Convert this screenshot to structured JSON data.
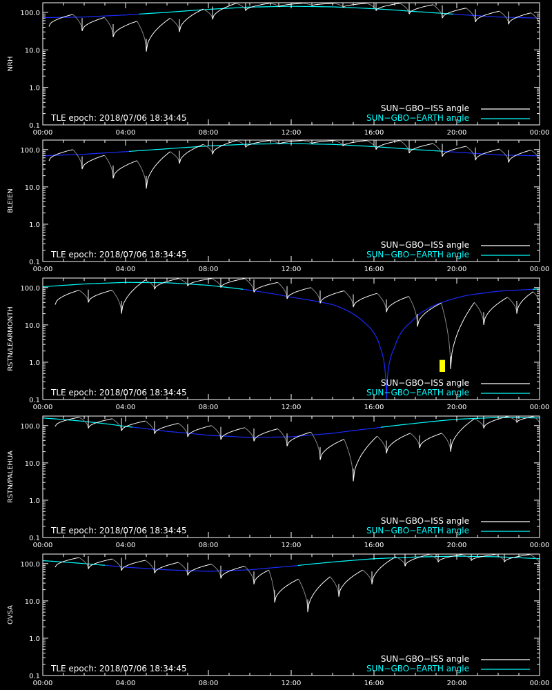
{
  "figure": {
    "background": "#000000",
    "axis_color": "#ffffff",
    "epoch_text": "TLE epoch: 2018/07/06 18:34:45",
    "legend": [
      {
        "label": "SUN−GBO−ISS angle",
        "color": "#ffffff"
      },
      {
        "label": "SUN−GBO−EARTH angle",
        "color": "#00ffff"
      }
    ]
  },
  "chart_data": [
    {
      "type": "line",
      "ylabel": "NRH",
      "yscale": "log",
      "ylim": [
        0.1,
        180
      ],
      "y_ticks": [
        "0.1",
        "1.0",
        "10.0",
        "100.0"
      ],
      "xlim_hours": [
        0,
        24
      ],
      "x_ticks": [
        "00:00",
        "04:00",
        "08:00",
        "12:00",
        "16:00",
        "20:00",
        "00:00"
      ],
      "series": [
        {
          "name": "SUN−GBO−ISS angle",
          "color": "#ffffff",
          "mins": [
            [
              0.3,
              42
            ],
            [
              1.9,
              32
            ],
            [
              3.4,
              22
            ],
            [
              5.0,
              9
            ],
            [
              6.6,
              30
            ],
            [
              8.2,
              65
            ],
            [
              9.8,
              110
            ],
            [
              11.4,
              140
            ],
            [
              13.0,
              150
            ],
            [
              14.5,
              135
            ],
            [
              16.1,
              110
            ],
            [
              17.7,
              90
            ],
            [
              19.3,
              70
            ],
            [
              20.9,
              55
            ],
            [
              22.5,
              48
            ],
            [
              24.0,
              45
            ]
          ]
        },
        {
          "name": "SUN−GBO−EARTH angle",
          "color": "#00ffff",
          "points": [
            [
              0,
              72
            ],
            [
              2,
              75
            ],
            [
              4,
              85
            ],
            [
              6,
              100
            ],
            [
              8,
              120
            ],
            [
              10,
              138
            ],
            [
              12,
              145
            ],
            [
              14,
              140
            ],
            [
              16,
              125
            ],
            [
              18,
              105
            ],
            [
              20,
              88
            ],
            [
              22,
              75
            ],
            [
              24,
              70
            ]
          ]
        }
      ]
    },
    {
      "type": "line",
      "ylabel": "BLEIEN",
      "yscale": "log",
      "ylim": [
        0.1,
        180
      ],
      "y_ticks": [
        "0.1",
        "1.0",
        "10.0",
        "100.0"
      ],
      "xlim_hours": [
        0,
        24
      ],
      "x_ticks": [
        "00:00",
        "04:00",
        "08:00",
        "12:00",
        "16:00",
        "20:00",
        "00:00"
      ],
      "series": [
        {
          "name": "SUN−GBO−ISS angle",
          "color": "#ffffff",
          "mins": [
            [
              0.3,
              50
            ],
            [
              1.9,
              30
            ],
            [
              3.4,
              17
            ],
            [
              5.0,
              9
            ],
            [
              6.6,
              42
            ],
            [
              8.2,
              75
            ],
            [
              9.8,
              115
            ],
            [
              11.4,
              140
            ],
            [
              13.0,
              145
            ],
            [
              14.5,
              125
            ],
            [
              16.1,
              100
            ],
            [
              17.7,
              80
            ],
            [
              19.3,
              65
            ],
            [
              20.9,
              52
            ],
            [
              22.5,
              45
            ],
            [
              24.0,
              48
            ]
          ]
        },
        {
          "name": "SUN−GBO−EARTH angle",
          "color": "#00ffff",
          "points": [
            [
              0,
              68
            ],
            [
              2,
              75
            ],
            [
              4,
              88
            ],
            [
              6,
              105
            ],
            [
              8,
              125
            ],
            [
              10,
              140
            ],
            [
              12,
              145
            ],
            [
              14,
              138
            ],
            [
              16,
              120
            ],
            [
              18,
              100
            ],
            [
              20,
              85
            ],
            [
              22,
              72
            ],
            [
              24,
              68
            ]
          ]
        }
      ]
    },
    {
      "type": "line",
      "ylabel": "RSTN/LEARMONTH",
      "yscale": "log",
      "ylim": [
        0.1,
        180
      ],
      "y_ticks": [
        "0.1",
        "1.0",
        "10.0",
        "100.0"
      ],
      "xlim_hours": [
        0,
        24
      ],
      "x_ticks": [
        "00:00",
        "04:00",
        "08:00",
        "12:00",
        "16:00",
        "20:00",
        "00:00"
      ],
      "series": [
        {
          "name": "SUN−GBO−ISS angle",
          "color": "#ffffff",
          "mins": [
            [
              0.6,
              35
            ],
            [
              2.2,
              40
            ],
            [
              3.8,
              20
            ],
            [
              5.4,
              90
            ],
            [
              7.0,
              110
            ],
            [
              8.6,
              100
            ],
            [
              10.2,
              75
            ],
            [
              11.8,
              50
            ],
            [
              13.4,
              38
            ],
            [
              15.0,
              30
            ],
            [
              16.6,
              22
            ],
            [
              18.1,
              9
            ],
            [
              19.7,
              0.65
            ],
            [
              21.3,
              10
            ],
            [
              22.9,
              20
            ],
            [
              24.0,
              35
            ]
          ]
        },
        {
          "name": "SUN−GBO−EARTH angle",
          "color": "#00ffff",
          "points": [
            [
              0,
              105
            ],
            [
              2,
              125
            ],
            [
              4,
              138
            ],
            [
              6,
              135
            ],
            [
              8,
              115
            ],
            [
              10,
              85
            ],
            [
              12,
              55
            ],
            [
              14,
              35
            ],
            [
              15.5,
              12
            ],
            [
              16.3,
              2.5
            ],
            [
              16.6,
              0.1
            ],
            [
              17.0,
              2.5
            ],
            [
              17.8,
              12
            ],
            [
              19,
              35
            ],
            [
              20.5,
              62
            ],
            [
              22,
              80
            ],
            [
              24,
              92
            ]
          ]
        }
      ],
      "marker": {
        "hour": 19.3,
        "ylow": 0.55,
        "yhigh": 1.15,
        "color": "#ffff00"
      }
    },
    {
      "type": "line",
      "ylabel": "RSTN/PALEHUA",
      "yscale": "log",
      "ylim": [
        0.1,
        180
      ],
      "y_ticks": [
        "0.1",
        "1.0",
        "10.0",
        "100.0"
      ],
      "xlim_hours": [
        0,
        24
      ],
      "x_ticks": [
        "00:00",
        "04:00",
        "08:00",
        "12:00",
        "16:00",
        "20:00",
        "00:00"
      ],
      "series": [
        {
          "name": "SUN−GBO−ISS angle",
          "color": "#ffffff",
          "mins": [
            [
              0.6,
              95
            ],
            [
              2.2,
              85
            ],
            [
              3.8,
              72
            ],
            [
              5.4,
              60
            ],
            [
              7.0,
              50
            ],
            [
              8.6,
              42
            ],
            [
              10.2,
              38
            ],
            [
              11.8,
              28
            ],
            [
              13.4,
              12
            ],
            [
              15.0,
              3.2
            ],
            [
              16.6,
              18
            ],
            [
              18.2,
              25
            ],
            [
              19.7,
              20
            ],
            [
              21.3,
              85
            ],
            [
              22.9,
              120
            ],
            [
              24.0,
              110
            ]
          ]
        },
        {
          "name": "SUN−GBO−EARTH angle",
          "color": "#00ffff",
          "points": [
            [
              0,
              160
            ],
            [
              2,
              130
            ],
            [
              4,
              95
            ],
            [
              6,
              70
            ],
            [
              8,
              55
            ],
            [
              10,
              48
            ],
            [
              12,
              50
            ],
            [
              14,
              62
            ],
            [
              16,
              85
            ],
            [
              18,
              115
            ],
            [
              20,
              148
            ],
            [
              22,
              165
            ],
            [
              24,
              160
            ]
          ]
        }
      ]
    },
    {
      "type": "line",
      "ylabel": "OVSA",
      "yscale": "log",
      "ylim": [
        0.1,
        180
      ],
      "y_ticks": [
        "0.1",
        "1.0",
        "10.0",
        "100.0"
      ],
      "xlim_hours": [
        0,
        24
      ],
      "x_ticks": [
        "00:00",
        "04:00",
        "08:00",
        "12:00",
        "16:00",
        "20:00",
        "00:00"
      ],
      "series": [
        {
          "name": "SUN−GBO−ISS angle",
          "color": "#ffffff",
          "mins": [
            [
              0.6,
              80
            ],
            [
              2.2,
              72
            ],
            [
              3.8,
              65
            ],
            [
              5.4,
              55
            ],
            [
              7.0,
              48
            ],
            [
              8.6,
              40
            ],
            [
              10.2,
              28
            ],
            [
              11.2,
              9
            ],
            [
              12.8,
              5
            ],
            [
              14.3,
              13
            ],
            [
              15.9,
              28
            ],
            [
              17.5,
              85
            ],
            [
              19.1,
              110
            ],
            [
              20.7,
              120
            ],
            [
              22.3,
              110
            ],
            [
              24.0,
              95
            ]
          ]
        },
        {
          "name": "SUN−GBO−EARTH angle",
          "color": "#00ffff",
          "points": [
            [
              0,
              120
            ],
            [
              2,
              100
            ],
            [
              4,
              80
            ],
            [
              6,
              68
            ],
            [
              8,
              62
            ],
            [
              10,
              68
            ],
            [
              12,
              85
            ],
            [
              14,
              110
            ],
            [
              16,
              135
            ],
            [
              18,
              150
            ],
            [
              20,
              158
            ],
            [
              22,
              152
            ],
            [
              24,
              135
            ]
          ]
        }
      ]
    }
  ]
}
